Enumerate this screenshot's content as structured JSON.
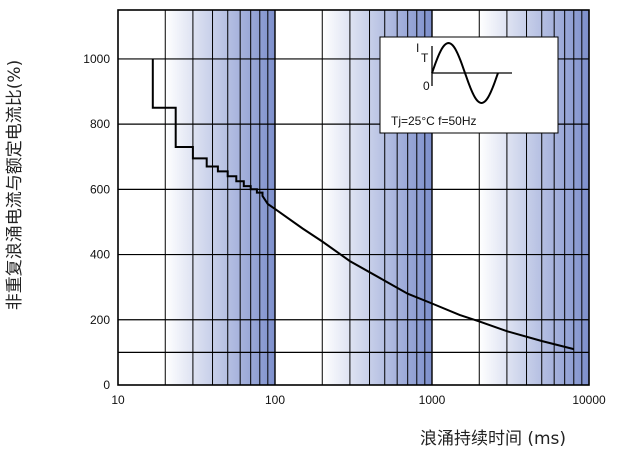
{
  "chart_data": {
    "type": "line",
    "xlabel": "浪涌持续时间 (ms)",
    "ylabel": "非重复浪涌电流与额定电流比(%)",
    "x_scale": "log",
    "xlim": [
      10,
      10000
    ],
    "ylim": [
      0,
      1150
    ],
    "x_ticks": [
      "10",
      "100",
      "1000",
      "10000"
    ],
    "y_ticks": [
      "0",
      "200",
      "400",
      "600",
      "800",
      "1000"
    ],
    "y_tick_values": [
      0,
      200,
      400,
      600,
      800,
      1000
    ],
    "grid": true,
    "extra_hlines": [
      100
    ],
    "series": [
      {
        "values_x": [
          16.67,
          16.67,
          23.3,
          23.3,
          30,
          30,
          36.7,
          36.7,
          43.3,
          43.3,
          50,
          50,
          56.7,
          56.7,
          63.3,
          63.3,
          70,
          70,
          76.7,
          76.7,
          83.3,
          83.3,
          90,
          100,
          150,
          200,
          300,
          500,
          700,
          1000,
          1500,
          2000,
          3000,
          5000,
          8000
        ],
        "values_y": [
          1000,
          850,
          850,
          730,
          730,
          695,
          695,
          670,
          670,
          655,
          655,
          640,
          640,
          625,
          625,
          610,
          610,
          600,
          600,
          590,
          590,
          580,
          555,
          540,
          480,
          440,
          380,
          320,
          280,
          250,
          215,
          195,
          165,
          135,
          110
        ]
      }
    ],
    "inset": {
      "current_label": "I",
      "current_subscript": "T",
      "zero_label": "0",
      "conditions": "Tj=25°C   f=50Hz"
    },
    "colors": {
      "shade_dark": "#7d8fcc",
      "shade_light": "#ffffff",
      "grid": "#000000",
      "curve": "#000000"
    }
  }
}
